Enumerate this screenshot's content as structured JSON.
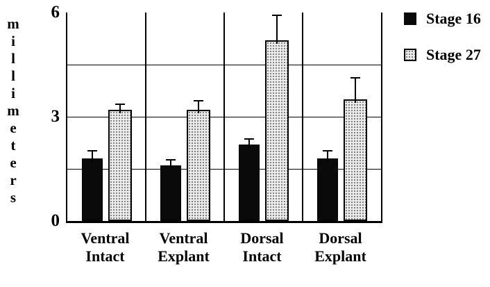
{
  "chart_data": {
    "type": "bar",
    "title": "",
    "ylabel": "millimeters",
    "xlabel": "",
    "ylim": [
      0,
      6
    ],
    "yticks": [
      0,
      3,
      6
    ],
    "gridlines": [
      1.5,
      3,
      4.5
    ],
    "grid": true,
    "legend_position": "top-right",
    "categories": [
      [
        "Ventral",
        "Intact"
      ],
      [
        "Ventral",
        "Explant"
      ],
      [
        "Dorsal",
        "Intact"
      ],
      [
        "Dorsal",
        "Explant"
      ]
    ],
    "series": [
      {
        "name": "Stage 16",
        "style": "solid",
        "color": "#0a0a0a",
        "values": [
          1.8,
          1.6,
          2.2,
          1.8
        ],
        "errors": [
          0.2,
          0.15,
          0.15,
          0.2
        ]
      },
      {
        "name": "Stage 27",
        "style": "stipple",
        "color": "#ebebeb",
        "values": [
          3.2,
          3.2,
          5.2,
          3.5
        ],
        "errors": [
          0.15,
          0.25,
          0.7,
          0.6
        ]
      }
    ]
  }
}
